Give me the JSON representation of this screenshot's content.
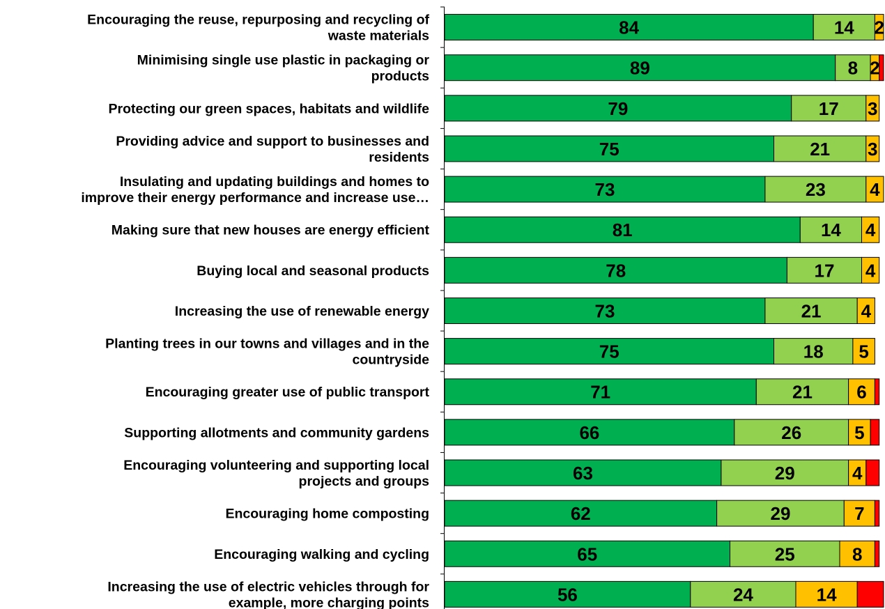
{
  "chart_data": {
    "type": "bar",
    "orientation": "horizontal",
    "stacked": true,
    "normalized_percent": true,
    "grid": false,
    "legend": "none",
    "title": "",
    "xlabel": "",
    "ylabel": "",
    "xlim": [
      0,
      100
    ],
    "categories": [
      "Encouraging the reuse, repurposing and recycling of waste materials",
      "Minimising single use plastic in packaging or products",
      "Protecting our green spaces, habitats and wildlife",
      "Providing advice and support to businesses and residents",
      "Insulating and updating buildings and homes to improve their energy performance and increase use…",
      "Making sure that new houses are energy efficient",
      "Buying local and seasonal products",
      "Increasing the use of renewable energy",
      "Planting trees in our towns and villages and in the countryside",
      "Encouraging greater use of public transport",
      "Supporting allotments and community gardens",
      "Encouraging volunteering and supporting local projects and groups",
      "Encouraging home composting",
      "Encouraging walking and cycling",
      "Increasing the use of electric vehicles through for example, more charging points"
    ],
    "category_lines": [
      [
        "Encouraging the reuse, repurposing and recycling of",
        "waste materials"
      ],
      [
        "Minimising single use plastic in packaging or",
        "products"
      ],
      [
        "Protecting our green spaces, habitats and wildlife"
      ],
      [
        "Providing advice and support to businesses and",
        "residents"
      ],
      [
        "Insulating and updating buildings and homes to",
        "improve their energy performance and increase use…"
      ],
      [
        "Making sure that new houses are energy efficient"
      ],
      [
        "Buying local and seasonal products"
      ],
      [
        "Increasing the use of renewable energy"
      ],
      [
        "Planting trees in our towns and villages and in the",
        "countryside"
      ],
      [
        "Encouraging greater use of public transport"
      ],
      [
        "Supporting allotments and community gardens"
      ],
      [
        "Encouraging volunteering and supporting local",
        "projects and groups"
      ],
      [
        "Encouraging home composting"
      ],
      [
        "Encouraging walking and cycling"
      ],
      [
        "Increasing the use of electric vehicles through for",
        "example, more charging points"
      ]
    ],
    "series": [
      {
        "color": "#00b050",
        "values": [
          84,
          89,
          79,
          75,
          73,
          81,
          78,
          73,
          75,
          71,
          66,
          63,
          62,
          65,
          56
        ]
      },
      {
        "color": "#92d050",
        "values": [
          14,
          8,
          17,
          21,
          23,
          14,
          17,
          21,
          18,
          21,
          26,
          29,
          29,
          25,
          24
        ]
      },
      {
        "color": "#ffc000",
        "values": [
          2,
          2,
          3,
          3,
          4,
          4,
          4,
          4,
          5,
          6,
          5,
          4,
          7,
          8,
          14
        ]
      },
      {
        "color": "#ff0000",
        "values": [
          0,
          1,
          0,
          0,
          0,
          0,
          0,
          0,
          0,
          1,
          2,
          3,
          1,
          1,
          6
        ]
      }
    ],
    "shown_labels": [
      [
        "84",
        "14",
        "2",
        ""
      ],
      [
        "89",
        "8",
        "2",
        ""
      ],
      [
        "79",
        "17",
        "3",
        ""
      ],
      [
        "75",
        "21",
        "3",
        ""
      ],
      [
        "73",
        "23",
        "4",
        ""
      ],
      [
        "81",
        "14",
        "4",
        ""
      ],
      [
        "78",
        "17",
        "4",
        ""
      ],
      [
        "73",
        "21",
        "4",
        ""
      ],
      [
        "75",
        "18",
        "5",
        ""
      ],
      [
        "71",
        "21",
        "6",
        ""
      ],
      [
        "66",
        "26",
        "5",
        ""
      ],
      [
        "63",
        "29",
        "4",
        ""
      ],
      [
        "62",
        "29",
        "7",
        ""
      ],
      [
        "65",
        "25",
        "8",
        ""
      ],
      [
        "56",
        "24",
        "14",
        ""
      ]
    ]
  }
}
